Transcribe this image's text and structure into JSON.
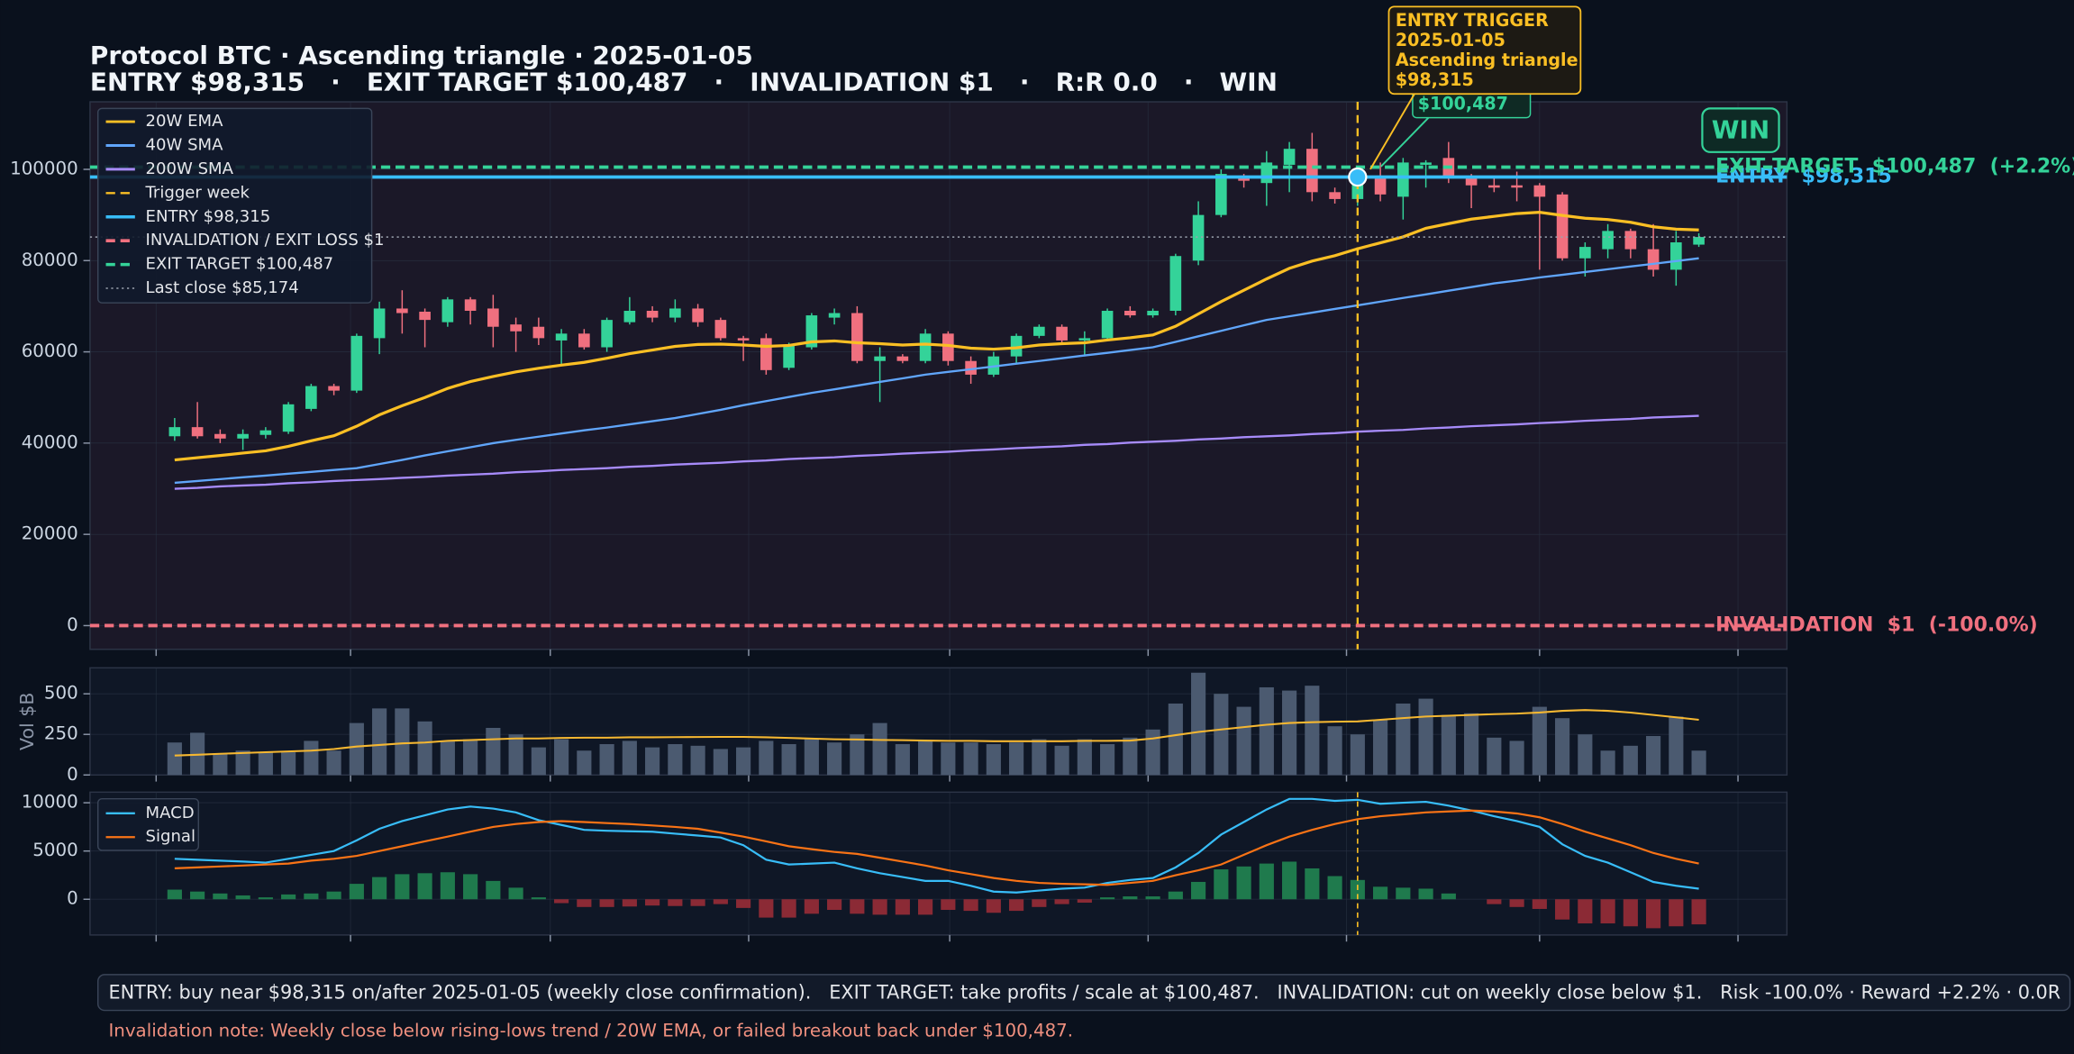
{
  "chart_data": [
    {
      "type": "candlestick",
      "title": "Protocol BTC · Ascending triangle · 2025-01-05",
      "subtitle": "ENTRY $98,315   ·   EXIT TARGET $100,487   ·   INVALIDATION $1   ·   R:R 0.0   ·   WIN",
      "up_color": "#34d399",
      "down_color": "#f0707f",
      "open": [
        41500,
        43500,
        42000,
        41000,
        41800,
        42500,
        47500,
        52500,
        51500,
        63000,
        69500,
        68800,
        66500,
        71500,
        69500,
        66000,
        65500,
        62500,
        64000,
        61000,
        66500,
        69000,
        67500,
        69500,
        67000,
        63000,
        63000,
        56500,
        61000,
        67500,
        68500,
        58000,
        59000,
        58000,
        64000,
        58000,
        55000,
        59000,
        63500,
        65500,
        62500,
        63000,
        69000,
        68000,
        69000,
        80000,
        90000,
        98000,
        97000,
        101000,
        104500,
        95000,
        93500,
        98000,
        94000,
        101000,
        102500,
        98000,
        96500,
        96500,
        96500,
        94500,
        80500,
        82500,
        86500,
        82500,
        78000,
        83500
      ],
      "high": [
        45500,
        49000,
        43000,
        43000,
        43500,
        49000,
        53000,
        53000,
        64000,
        71000,
        73500,
        69500,
        72000,
        72000,
        72500,
        67500,
        67500,
        65000,
        65000,
        67500,
        72000,
        70000,
        71500,
        70500,
        67500,
        63500,
        64000,
        62000,
        68500,
        69500,
        70000,
        61000,
        59500,
        65000,
        64500,
        59000,
        60000,
        64000,
        66000,
        66000,
        64500,
        69500,
        70000,
        69500,
        81500,
        93000,
        100000,
        99000,
        104000,
        106000,
        108000,
        96000,
        99000,
        101500,
        102500,
        102000,
        106000,
        99000,
        98500,
        99500,
        97000,
        95000,
        84000,
        88000,
        87000,
        88000,
        86500,
        86000
      ],
      "low": [
        40500,
        41000,
        40000,
        38500,
        41000,
        42000,
        47000,
        50500,
        51000,
        59500,
        64000,
        61000,
        65500,
        66000,
        61000,
        60000,
        61500,
        57000,
        60500,
        60000,
        66000,
        66500,
        66500,
        65500,
        62500,
        58000,
        55000,
        56000,
        60500,
        66000,
        57500,
        49000,
        57500,
        57500,
        57000,
        53000,
        54500,
        57500,
        63000,
        62000,
        59000,
        62500,
        67500,
        67500,
        68000,
        79000,
        89500,
        96000,
        92000,
        95000,
        93000,
        92500,
        92000,
        93000,
        89000,
        96000,
        97000,
        91500,
        95000,
        93000,
        78000,
        80000,
        76500,
        80500,
        80500,
        76500,
        74500,
        83000
      ],
      "close": [
        43500,
        41500,
        41000,
        42000,
        42800,
        48500,
        52500,
        51500,
        63500,
        69500,
        68500,
        67000,
        71500,
        69000,
        65500,
        64500,
        63000,
        64000,
        61000,
        67000,
        69000,
        67500,
        69500,
        66500,
        63000,
        62500,
        56000,
        61500,
        68000,
        68500,
        58000,
        59000,
        58000,
        64000,
        58000,
        55000,
        59000,
        63500,
        65500,
        62500,
        63000,
        69000,
        68000,
        69000,
        81000,
        90000,
        99000,
        97500,
        101500,
        104500,
        95000,
        93500,
        98315,
        94500,
        101500,
        101500,
        98000,
        96500,
        96000,
        96000,
        94000,
        80500,
        83000,
        86500,
        82500,
        78000,
        84000,
        85174
      ],
      "series": [
        {
          "name": "20W EMA",
          "color": "#fbbf24",
          "values": [
            36300,
            36800,
            37300,
            37800,
            38300,
            39300,
            40500,
            41600,
            43700,
            46200,
            48200,
            50000,
            52000,
            53500,
            54600,
            55600,
            56400,
            57100,
            57700,
            58600,
            59600,
            60400,
            61200,
            61600,
            61700,
            61500,
            61200,
            61400,
            62200,
            62400,
            62000,
            61800,
            61500,
            61700,
            61400,
            60800,
            60600,
            60900,
            61500,
            61800,
            62000,
            62600,
            63100,
            63700,
            65600,
            68300,
            71000,
            73500,
            76000,
            78300,
            79900,
            81100,
            82600,
            83900,
            85200,
            87100,
            88100,
            89100,
            89700,
            90300,
            90600,
            89900,
            89300,
            89000,
            88400,
            87400,
            86900,
            86700
          ]
        },
        {
          "name": "40W SMA",
          "color": "#60a5fa",
          "values": [
            31300,
            31700,
            32100,
            32500,
            32900,
            33300,
            33700,
            34100,
            34500,
            35400,
            36300,
            37300,
            38200,
            39100,
            40000,
            40700,
            41400,
            42100,
            42800,
            43400,
            44100,
            44800,
            45500,
            46400,
            47300,
            48300,
            49200,
            50100,
            51000,
            51800,
            52600,
            53400,
            54200,
            55000,
            55600,
            56200,
            56800,
            57400,
            58000,
            58600,
            59200,
            59800,
            60400,
            61000,
            62200,
            63400,
            64600,
            65800,
            67000,
            67800,
            68600,
            69400,
            70200,
            71000,
            71800,
            72600,
            73400,
            74200,
            75000,
            75600,
            76300,
            76900,
            77500,
            78100,
            78700,
            79300,
            79900,
            80500
          ]
        },
        {
          "name": "200W SMA",
          "color": "#a78bfa",
          "values": [
            30000,
            30200,
            30500,
            30700,
            30900,
            31200,
            31400,
            31700,
            31900,
            32100,
            32400,
            32600,
            32900,
            33100,
            33300,
            33600,
            33800,
            34100,
            34300,
            34500,
            34800,
            35000,
            35300,
            35500,
            35700,
            36000,
            36200,
            36500,
            36700,
            36900,
            37200,
            37400,
            37700,
            37900,
            38100,
            38400,
            38600,
            38900,
            39100,
            39300,
            39600,
            39800,
            40100,
            40300,
            40500,
            40800,
            41000,
            41300,
            41500,
            41700,
            42000,
            42200,
            42500,
            42700,
            42900,
            43200,
            43400,
            43700,
            43900,
            44100,
            44400,
            44600,
            44900,
            45100,
            45300,
            45600,
            45800,
            46000
          ]
        }
      ],
      "trigger": {
        "name": "Trigger week",
        "at": 52,
        "color": "#fbbf24"
      },
      "reference_lines": [
        {
          "name": "ENTRY $98,315",
          "value": 98315,
          "color": "#38bdf8",
          "style": "solid",
          "label": "ENTRY  $98,315"
        },
        {
          "name": "INVALIDATION / EXIT LOSS $1",
          "value": 1,
          "color": "#f0707f",
          "style": "dashed",
          "label": "INVALIDATION  $1  (-100.0%)"
        },
        {
          "name": "EXIT TARGET $100,487",
          "value": 100487,
          "color": "#34d399",
          "style": "dashed",
          "label": "EXIT TARGET  $100,487  (+2.2%)"
        },
        {
          "name": "Last close $85,174",
          "value": 85174,
          "color": "#9ca3af",
          "style": "dotted"
        }
      ],
      "annotations": [
        {
          "lines": [
            "ENTRY TRIGGER",
            "2025-01-05",
            "Ascending triangle",
            "$98,315"
          ]
        },
        {
          "text": "$100,487"
        }
      ],
      "badge": "WIN",
      "ylim": [
        -5200,
        114800
      ],
      "yticks": [
        0,
        20000,
        40000,
        60000,
        80000,
        100000
      ],
      "grid": true,
      "legend": "upper left"
    },
    {
      "type": "bar",
      "ylabel": "Vol $B",
      "color": "#4b5a70",
      "values": [
        200,
        260,
        130,
        150,
        140,
        140,
        210,
        150,
        320,
        410,
        410,
        330,
        210,
        220,
        290,
        250,
        170,
        220,
        150,
        190,
        210,
        170,
        190,
        180,
        160,
        170,
        210,
        190,
        220,
        200,
        250,
        320,
        190,
        210,
        200,
        200,
        190,
        200,
        220,
        180,
        220,
        190,
        230,
        280,
        440,
        630,
        500,
        420,
        540,
        520,
        550,
        300,
        250,
        340,
        440,
        470,
        370,
        380,
        230,
        210,
        420,
        350,
        250,
        150,
        180,
        240,
        360,
        150
      ],
      "overlay": {
        "color": "#f5b731",
        "values": [
          120,
          125,
          130,
          135,
          140,
          145,
          150,
          160,
          175,
          185,
          195,
          200,
          210,
          215,
          220,
          225,
          225,
          228,
          230,
          230,
          232,
          232,
          233,
          234,
          235,
          235,
          232,
          228,
          224,
          220,
          218,
          216,
          214,
          212,
          210,
          210,
          208,
          208,
          208,
          208,
          210,
          210,
          212,
          225,
          245,
          265,
          280,
          295,
          310,
          320,
          325,
          328,
          330,
          340,
          350,
          360,
          365,
          370,
          375,
          378,
          385,
          395,
          400,
          395,
          385,
          370,
          355,
          340
        ]
      },
      "ylim": [
        0,
        660
      ],
      "yticks": [
        0,
        250,
        500
      ],
      "grid": true
    },
    {
      "type": "macd",
      "series": [
        {
          "name": "MACD",
          "color": "#38bdf8",
          "values": [
            4200,
            4100,
            4000,
            3900,
            3800,
            4200,
            4600,
            5000,
            6100,
            7300,
            8100,
            8700,
            9300,
            9600,
            9400,
            9000,
            8200,
            7700,
            7200,
            7100,
            7050,
            7000,
            6800,
            6600,
            6400,
            5600,
            4100,
            3600,
            3700,
            3800,
            3200,
            2700,
            2300,
            1900,
            1900,
            1400,
            800,
            700,
            900,
            1100,
            1200,
            1700,
            2000,
            2200,
            3300,
            4800,
            6700,
            8000,
            9300,
            10400,
            10400,
            10200,
            10300,
            9900,
            10000,
            10100,
            9700,
            9200,
            8600,
            8100,
            7500,
            5700,
            4500,
            3800,
            2800,
            1800,
            1400,
            1100
          ]
        },
        {
          "name": "Signal",
          "color": "#f97316",
          "values": [
            3200,
            3300,
            3400,
            3500,
            3600,
            3700,
            4000,
            4200,
            4500,
            5000,
            5500,
            6000,
            6500,
            7000,
            7500,
            7800,
            8000,
            8100,
            8000,
            7900,
            7800,
            7650,
            7500,
            7300,
            6900,
            6500,
            6000,
            5500,
            5200,
            4900,
            4700,
            4300,
            3900,
            3500,
            3000,
            2600,
            2200,
            1900,
            1700,
            1600,
            1550,
            1500,
            1700,
            1900,
            2500,
            3000,
            3600,
            4600,
            5600,
            6500,
            7200,
            7800,
            8300,
            8600,
            8800,
            9000,
            9100,
            9200,
            9100,
            8900,
            8500,
            7800,
            7000,
            6300,
            5600,
            4800,
            4200,
            3700
          ]
        }
      ],
      "histogram": {
        "positive_color": "#1f7a4d",
        "negative_color": "#8b2a35",
        "values": [
          1000,
          800,
          600,
          400,
          200,
          500,
          600,
          800,
          1600,
          2300,
          2600,
          2700,
          2800,
          2600,
          1900,
          1200,
          200,
          -400,
          -800,
          -800,
          -750,
          -650,
          -700,
          -700,
          -500,
          -900,
          -1900,
          -1900,
          -1500,
          -1100,
          -1500,
          -1600,
          -1600,
          -1600,
          -1100,
          -1200,
          -1400,
          -1200,
          -800,
          -500,
          -350,
          200,
          300,
          300,
          800,
          1800,
          3100,
          3400,
          3700,
          3900,
          3200,
          2400,
          2000,
          1300,
          1200,
          1100,
          600,
          0,
          -500,
          -800,
          -1000,
          -2100,
          -2500,
          -2500,
          -2800,
          -3000,
          -2800,
          -2600
        ]
      },
      "ylim": [
        -3700,
        11100
      ],
      "yticks": [
        0,
        5000,
        10000
      ],
      "grid": true,
      "legend": "upper left"
    }
  ],
  "footer": {
    "text": "ENTRY: buy near $98,315 on/after 2025-01-05 (weekly close confirmation).   EXIT TARGET: take profits / scale at $100,487.   INVALIDATION: cut on weekly close below $1.   Risk -100.0% · Reward +2.2% · 0.0R",
    "note": "Invalidation note: Weekly close below rising-lows trend / 20W EMA, or failed breakout back under $100,487."
  }
}
